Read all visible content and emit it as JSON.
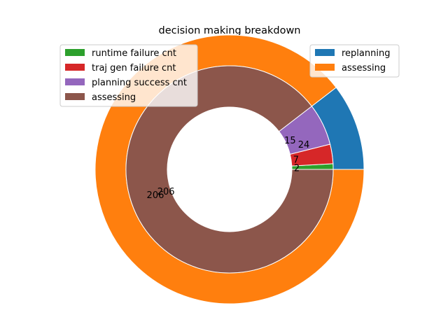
{
  "chart_data": {
    "type": "pie",
    "title": "decision making breakdown",
    "outer": {
      "categories": [
        "replanning",
        "assessing"
      ],
      "values": [
        24,
        206
      ],
      "colors": [
        "#1f77b4",
        "#ff7f0e"
      ],
      "labels": [
        "24",
        "206"
      ]
    },
    "inner": {
      "categories": [
        "runtime failure cnt",
        "traj gen failure cnt",
        "planning success cnt",
        "assessing"
      ],
      "values": [
        2,
        7,
        15,
        206
      ],
      "colors": [
        "#2ca02c",
        "#d62728",
        "#9467bd",
        "#8c564b"
      ],
      "labels": [
        "2",
        "7",
        "15",
        "206"
      ]
    },
    "legend_left": {
      "placement": "upper-left",
      "entries": [
        "runtime failure cnt",
        "traj gen failure cnt",
        "planning success cnt",
        "assessing"
      ]
    },
    "legend_right": {
      "placement": "upper-right",
      "entries": [
        "replanning",
        "assessing"
      ]
    }
  }
}
